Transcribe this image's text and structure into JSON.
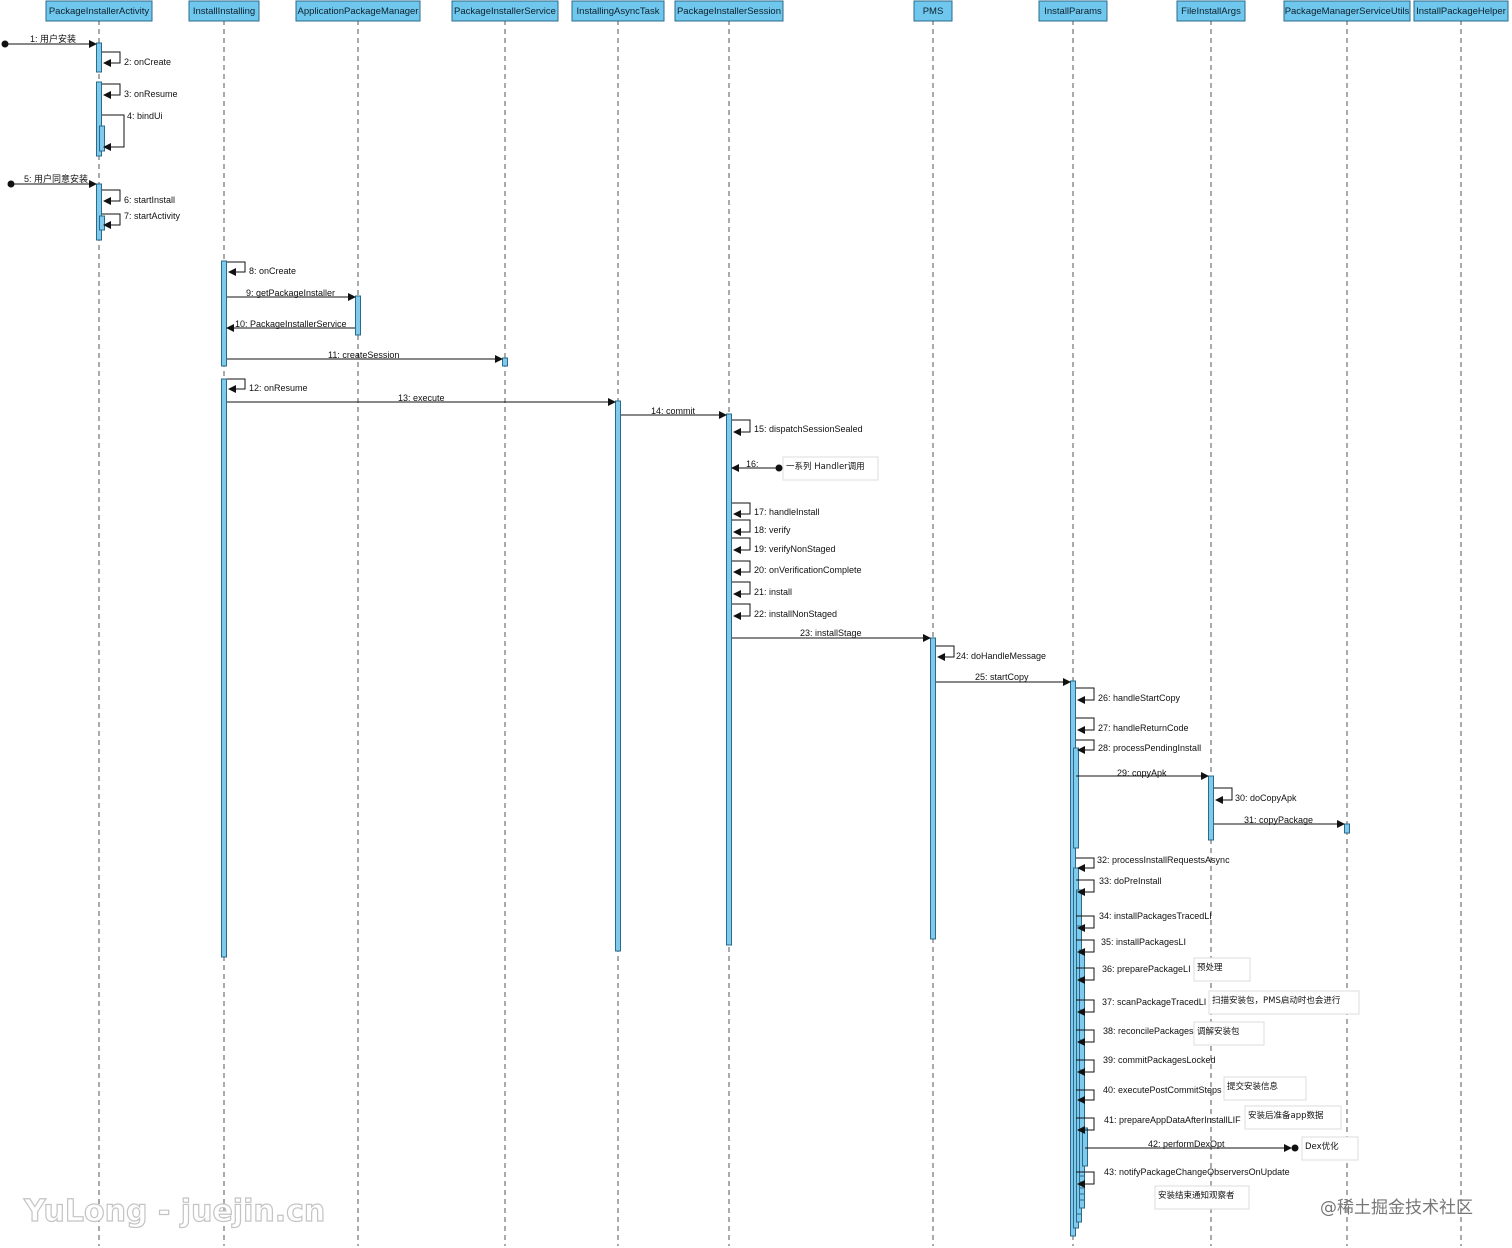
{
  "participants": [
    "PackageInstallerActivity",
    "InstallInstalling",
    "ApplicationPackageManager",
    "PackageInstallerService",
    "InstallingAsyncTask",
    "PackageInstallerSession",
    "PMS",
    "InstallParams",
    "FileInstallArgs",
    "PackageManagerServiceUtils",
    "InstallPackageHelper"
  ],
  "messages": [
    {
      "label": "1: 用户安装",
      "from": "ext",
      "to": 0
    },
    {
      "label": "2: onCreate",
      "from": 0,
      "to": 0
    },
    {
      "label": "3: onResume",
      "from": 0,
      "to": 0
    },
    {
      "label": "4: bindUi",
      "from": 0,
      "to": 0
    },
    {
      "label": "5: 用户同意安装",
      "from": "ext",
      "to": 0
    },
    {
      "label": "6: startInstall",
      "from": 0,
      "to": 0
    },
    {
      "label": "7: startActivity",
      "from": 0,
      "to": 0
    },
    {
      "label": "8: onCreate",
      "from": 1,
      "to": 1
    },
    {
      "label": "9: getPackageInstaller",
      "from": 1,
      "to": 2
    },
    {
      "label": "10: PackageInstallerService",
      "from": 2,
      "to": 1
    },
    {
      "label": "11: createSession",
      "from": 1,
      "to": 3
    },
    {
      "label": "12: onResume",
      "from": 1,
      "to": 1
    },
    {
      "label": "13: execute",
      "from": 1,
      "to": 4
    },
    {
      "label": "14: commit",
      "from": 4,
      "to": 5
    },
    {
      "label": "15: dispatchSessionSealed",
      "from": 5,
      "to": 5
    },
    {
      "label": "16:",
      "from": "note",
      "to": 5
    },
    {
      "label": "17: handleInstall",
      "from": 5,
      "to": 5
    },
    {
      "label": "18: verify",
      "from": 5,
      "to": 5
    },
    {
      "label": "19: verifyNonStaged",
      "from": 5,
      "to": 5
    },
    {
      "label": "20: onVerificationComplete",
      "from": 5,
      "to": 5
    },
    {
      "label": "21: install",
      "from": 5,
      "to": 5
    },
    {
      "label": "22: installNonStaged",
      "from": 5,
      "to": 5
    },
    {
      "label": "23: installStage",
      "from": 5,
      "to": 6
    },
    {
      "label": "24: doHandleMessage",
      "from": 6,
      "to": 6
    },
    {
      "label": "25: startCopy",
      "from": 6,
      "to": 7
    },
    {
      "label": "26: handleStartCopy",
      "from": 7,
      "to": 7
    },
    {
      "label": "27: handleReturnCode",
      "from": 7,
      "to": 7
    },
    {
      "label": "28: processPendingInstall",
      "from": 7,
      "to": 7
    },
    {
      "label": "29: copyApk",
      "from": 7,
      "to": 8
    },
    {
      "label": "30: doCopyApk",
      "from": 8,
      "to": 8
    },
    {
      "label": "31: copyPackage",
      "from": 8,
      "to": 9
    },
    {
      "label": "32: processInstallRequestsAsync",
      "from": 7,
      "to": 7
    },
    {
      "label": "33: doPreInstall",
      "from": 7,
      "to": 7
    },
    {
      "label": "34: installPackagesTracedLI",
      "from": 7,
      "to": 7
    },
    {
      "label": "35: installPackagesLI",
      "from": 7,
      "to": 7
    },
    {
      "label": "36: preparePackageLI",
      "from": 7,
      "to": 7
    },
    {
      "label": "37: scanPackageTracedLI",
      "from": 7,
      "to": 7
    },
    {
      "label": "38: reconcilePackages",
      "from": 7,
      "to": 7
    },
    {
      "label": "39: commitPackagesLocked",
      "from": 7,
      "to": 7
    },
    {
      "label": "40: executePostCommitSteps",
      "from": 7,
      "to": 7
    },
    {
      "label": "41: prepareAppDataAfterInstallLIF",
      "from": 7,
      "to": 7
    },
    {
      "label": "42: performDexOpt",
      "from": 7,
      "to": "note"
    },
    {
      "label": "43: notifyPackageChangeObserversOnUpdate",
      "from": 7,
      "to": 7
    }
  ],
  "notes": [
    {
      "text": "一系列 Handler调用"
    },
    {
      "text": "预处理"
    },
    {
      "text": "扫描安装包，PMS启动时也会进行"
    },
    {
      "text": "调解安装包"
    },
    {
      "text": "提交安装信息"
    },
    {
      "text": "安装后准备app数据"
    },
    {
      "text": "Dex优化"
    },
    {
      "text": "安装结束通知观察者"
    }
  ],
  "watermarks": {
    "left": "YuLong - juejin.cn",
    "right": "@稀土掘金技术社区"
  },
  "colors": {
    "header_fill": "#6fc7ee",
    "activation_fill": "#7fcbee",
    "line": "#111111"
  }
}
